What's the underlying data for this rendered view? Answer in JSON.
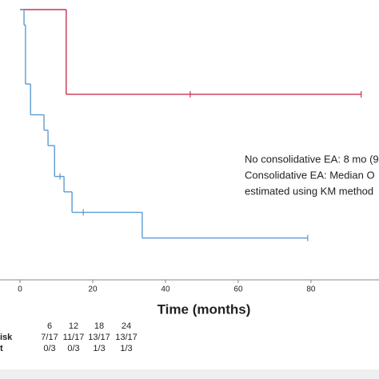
{
  "chart_data": {
    "type": "km",
    "x_label": "Time (months)",
    "xlim": [
      -5.5,
      98.7
    ],
    "xticks": [
      0,
      20,
      40,
      60,
      80
    ],
    "ylim": [
      0,
      1
    ],
    "series": [
      {
        "color": "#c8334f",
        "x": [
          0,
          12.7,
          93.8
        ],
        "values": [
          1,
          0.67,
          0.67
        ],
        "censored": {
          "x": [
            46.8,
            93.8
          ],
          "values": [
            0.67,
            0.67
          ]
        }
      },
      {
        "color": "#5b9bd5",
        "x": [
          0,
          1.1,
          1.5,
          2.9,
          6.6,
          7.7,
          9.5,
          12.1,
          14.3,
          33.6,
          79.1
        ],
        "values": [
          1,
          0.94,
          0.71,
          0.59,
          0.53,
          0.47,
          0.35,
          0.29,
          0.21,
          0.11,
          0.11
        ],
        "censored": {
          "x": [
            11,
            17.4,
            79.1
          ],
          "values": [
            0.35,
            0.21,
            0.11
          ]
        }
      }
    ],
    "annotations": [
      "No consolidative EA: 8 mo (9",
      "Consolidative EA: Median O",
      "estimated using KM method"
    ],
    "risk_table": {
      "header": [
        "6",
        "12",
        "18",
        "24"
      ],
      "rows": [
        [
          "isk",
          "7/17",
          "11/17",
          "13/17",
          "13/17"
        ],
        [
          "t",
          "0/3",
          "0/3",
          "1/3",
          "1/3"
        ]
      ]
    }
  }
}
